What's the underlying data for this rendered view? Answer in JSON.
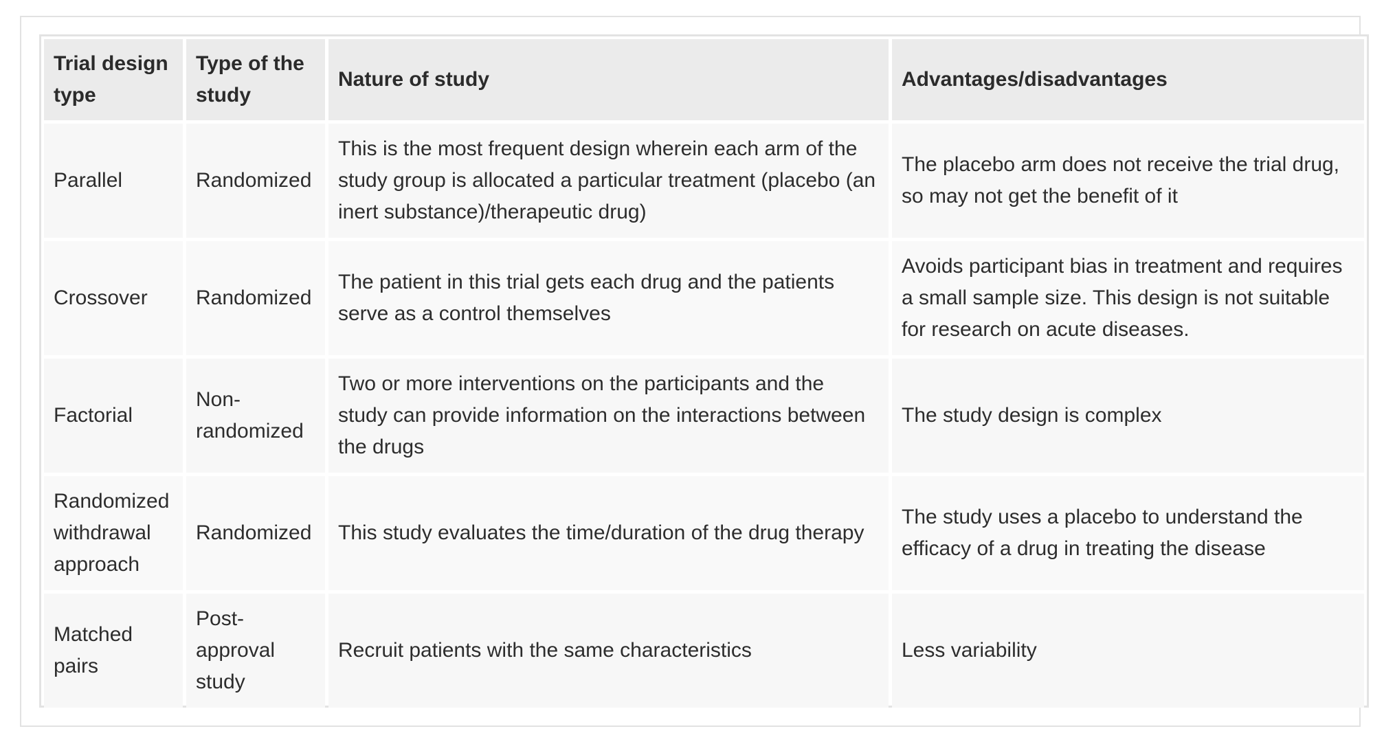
{
  "table": {
    "headers": [
      "Trial design type",
      "Type of the study",
      "Nature of study",
      "Advantages/disadvantages"
    ],
    "rows": [
      {
        "design": "Parallel",
        "type": "Randomized",
        "nature": "This is the most frequent design wherein each arm of the study group is allocated a particular treatment (placebo (an inert substance)/therapeutic drug)",
        "advantages": "The placebo arm does not receive the trial drug, so may not get the benefit of it"
      },
      {
        "design": "Crossover",
        "type": "Randomized",
        "nature": "The patient in this trial gets each drug and the patients serve as a control themselves",
        "advantages": "Avoids participant bias in treatment and requires a small sample size. This design is not suitable for research on acute diseases."
      },
      {
        "design": "Factorial",
        "type": "Non-randomized",
        "nature": "Two or more interventions on the participants and the study can provide information on the interactions between the drugs",
        "advantages": "The study design is complex"
      },
      {
        "design": "Randomized withdrawal approach",
        "type": "Randomized",
        "nature": "This study evaluates the time/duration of the drug therapy",
        "advantages": "The study uses a placebo to understand the efficacy of a drug in treating the disease"
      },
      {
        "design": "Matched pairs",
        "type": "Post-approval study",
        "nature": "Recruit patients with the same characteristics",
        "advantages": "Less variability"
      }
    ]
  }
}
